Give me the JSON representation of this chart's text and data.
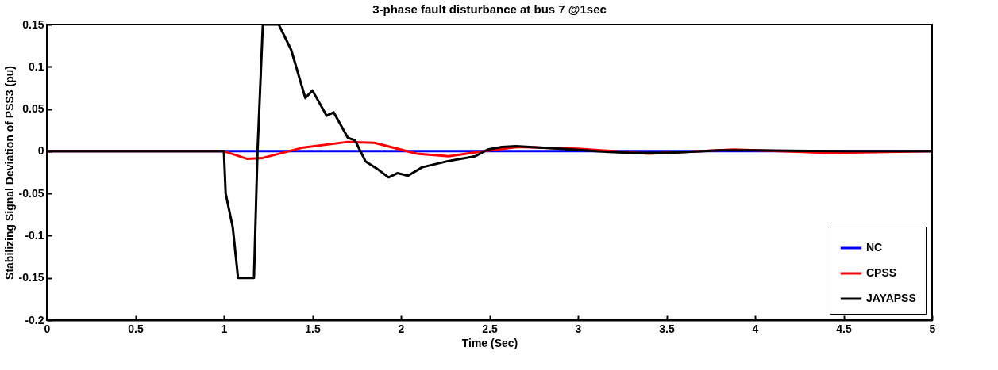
{
  "chart_data": {
    "type": "line",
    "title": "3-phase fault disturbance at bus 7 @1sec",
    "xlabel": "Time (Sec)",
    "ylabel": "Stabilizing Signal Deviation of PSS3 (pu)",
    "xlim": [
      0,
      5
    ],
    "ylim": [
      -0.2,
      0.15
    ],
    "xticks": [
      0,
      0.5,
      1,
      1.5,
      2,
      2.5,
      3,
      3.5,
      4,
      4.5,
      5
    ],
    "yticks": [
      -0.2,
      -0.15,
      -0.1,
      -0.05,
      0,
      0.05,
      0.1,
      0.15
    ],
    "legend": "bottom right",
    "line_style": "solid",
    "series": [
      {
        "name": "NC",
        "color": "#0000ff",
        "x": [
          0,
          5
        ],
        "values": [
          0,
          0
        ]
      },
      {
        "name": "CPSS",
        "color": "#ff0000",
        "x": [
          0,
          1.0,
          1.13,
          1.22,
          1.44,
          1.7,
          1.85,
          2.09,
          2.27,
          2.47,
          2.66,
          3.0,
          3.4,
          3.88,
          4.42,
          5
        ],
        "values": [
          0,
          0,
          -0.009,
          -0.008,
          0.004,
          0.011,
          0.01,
          -0.003,
          -0.006,
          0,
          0.005,
          0.003,
          -0.003,
          0.002,
          -0.002,
          0
        ]
      },
      {
        "name": "JAYAPSS",
        "color": "#000000",
        "x": [
          0,
          1.0,
          1.01,
          1.05,
          1.08,
          1.17,
          1.19,
          1.22,
          1.31,
          1.38,
          1.46,
          1.5,
          1.58,
          1.62,
          1.7,
          1.74,
          1.8,
          1.86,
          1.93,
          1.98,
          2.04,
          2.12,
          2.26,
          2.42,
          2.49,
          2.57,
          2.65,
          2.9,
          3.1,
          3.3,
          3.5,
          3.8,
          4.0,
          4.5,
          5
        ],
        "values": [
          0,
          0,
          -0.05,
          -0.09,
          -0.15,
          -0.15,
          0,
          0.15,
          0.15,
          0.12,
          0.063,
          0.072,
          0.042,
          0.046,
          0.016,
          0.013,
          -0.012,
          -0.02,
          -0.031,
          -0.026,
          -0.029,
          -0.019,
          -0.012,
          -0.006,
          0.002,
          0.005,
          0.006,
          0.003,
          0,
          -0.002,
          -0.002,
          0.001,
          0.001,
          0,
          0
        ]
      }
    ]
  }
}
